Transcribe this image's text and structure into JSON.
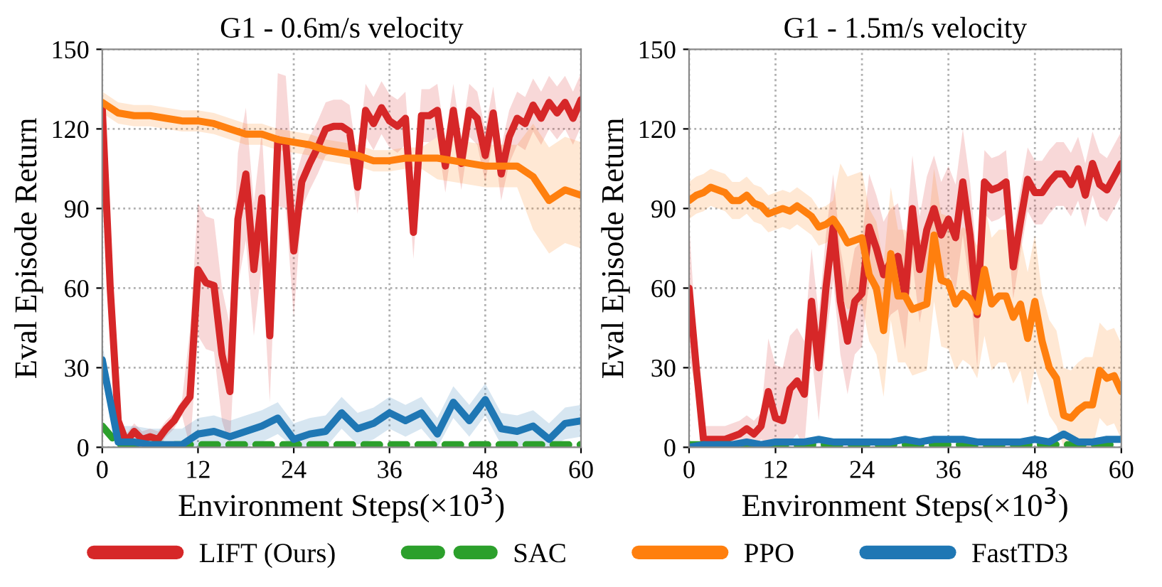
{
  "chart_data": [
    {
      "type": "line",
      "title": "G1 - 0.6m/s velocity",
      "xlabel": "Environment Steps(×10$^{3}$)",
      "ylabel": "Eval Episode Return",
      "xlim": [
        0,
        60
      ],
      "xticks": [
        0,
        12,
        24,
        36,
        48,
        60
      ],
      "ylim": [
        0,
        150
      ],
      "yticks": [
        0,
        30,
        60,
        90,
        120,
        150
      ],
      "grid": true,
      "legend": "bottom",
      "line_style": "solid",
      "series": [
        {
          "name": "LIFT (Ours)",
          "color": "#d62728",
          "x": [
            0,
            1,
            2,
            3,
            4,
            5,
            6,
            7,
            8,
            9,
            10,
            11,
            12,
            13,
            14,
            15,
            16,
            17,
            18,
            19,
            20,
            21,
            22,
            23,
            24,
            25,
            26,
            27,
            28,
            29,
            30,
            31,
            32,
            33,
            34,
            35,
            36,
            37,
            38,
            39,
            40,
            41,
            42,
            43,
            44,
            45,
            46,
            47,
            48,
            49,
            50,
            51,
            52,
            53,
            54,
            55,
            56,
            57,
            58,
            59,
            60
          ],
          "values": [
            128,
            60,
            10,
            2,
            6,
            3,
            4,
            3,
            7,
            10,
            15,
            19,
            67,
            62,
            61,
            35,
            21,
            86,
            103,
            67,
            94,
            42,
            116,
            115,
            74,
            100,
            107,
            113,
            120,
            121,
            121,
            119,
            98,
            127,
            122,
            128,
            123,
            121,
            124,
            81,
            125,
            125,
            127,
            106,
            127,
            107,
            127,
            124,
            110,
            126,
            103,
            117,
            124,
            122,
            129,
            124,
            130,
            126,
            130,
            124,
            131
          ],
          "lower": [
            125,
            57,
            7,
            0,
            3,
            0,
            1,
            0,
            4,
            7,
            12,
            0,
            42,
            37,
            36,
            10,
            0,
            61,
            78,
            42,
            69,
            17,
            91,
            90,
            49,
            90,
            97,
            103,
            110,
            111,
            111,
            109,
            88,
            117,
            112,
            118,
            113,
            111,
            114,
            71,
            115,
            115,
            117,
            96,
            117,
            97,
            117,
            114,
            100,
            116,
            93,
            107,
            114,
            112,
            119,
            114,
            120,
            116,
            120,
            114,
            121
          ],
          "upper": [
            131,
            63,
            13,
            5,
            9,
            6,
            7,
            6,
            10,
            13,
            18,
            44,
            92,
            87,
            86,
            60,
            46,
            111,
            128,
            92,
            119,
            67,
            141,
            140,
            99,
            110,
            117,
            123,
            130,
            131,
            131,
            129,
            108,
            137,
            132,
            138,
            133,
            131,
            134,
            91,
            135,
            135,
            137,
            116,
            137,
            117,
            137,
            134,
            120,
            136,
            113,
            127,
            134,
            132,
            139,
            134,
            140,
            136,
            140,
            134,
            141
          ]
        },
        {
          "name": "SAC",
          "color": "#2ca02c",
          "line_style": "dashed",
          "x": [
            0,
            2,
            4,
            6,
            8,
            10,
            12,
            14,
            16,
            18,
            20,
            22,
            24,
            26,
            28,
            30,
            32,
            34,
            36,
            38,
            40,
            42,
            44,
            46,
            48,
            50,
            52,
            54,
            56,
            58,
            60
          ],
          "values": [
            8,
            1,
            1,
            1,
            1,
            1,
            1,
            1,
            1,
            1,
            1,
            1,
            1,
            1,
            1,
            1,
            1,
            1,
            1,
            1,
            1,
            1,
            1,
            1,
            1,
            1,
            1,
            1,
            1,
            1,
            1
          ]
        },
        {
          "name": "PPO",
          "color": "#ff7f0e",
          "x": [
            0,
            2,
            4,
            6,
            8,
            10,
            12,
            14,
            16,
            18,
            20,
            22,
            24,
            26,
            28,
            30,
            32,
            34,
            36,
            38,
            40,
            42,
            44,
            46,
            48,
            50,
            52,
            54,
            56,
            58,
            60
          ],
          "values": [
            130,
            126,
            125,
            125,
            124,
            123,
            123,
            122,
            120,
            118,
            118,
            116,
            115,
            114,
            112,
            111,
            110,
            108,
            108,
            109,
            109,
            109,
            108,
            107,
            106,
            106,
            106,
            102,
            93,
            97,
            95
          ],
          "lower": [
            126,
            122,
            121,
            121,
            120,
            119,
            119,
            118,
            116,
            114,
            114,
            112,
            111,
            110,
            108,
            107,
            106,
            104,
            104,
            105,
            105,
            101,
            100,
            99,
            98,
            98,
            98,
            82,
            73,
            77,
            75
          ],
          "upper": [
            134,
            130,
            129,
            129,
            128,
            127,
            127,
            126,
            124,
            122,
            122,
            120,
            119,
            118,
            116,
            115,
            114,
            112,
            112,
            113,
            113,
            117,
            116,
            115,
            114,
            114,
            114,
            122,
            113,
            117,
            115
          ]
        },
        {
          "name": "FastTD3",
          "color": "#1f77b4",
          "x": [
            0,
            2,
            4,
            6,
            8,
            10,
            12,
            14,
            16,
            18,
            20,
            22,
            24,
            26,
            28,
            30,
            32,
            34,
            36,
            38,
            40,
            42,
            44,
            46,
            48,
            50,
            52,
            54,
            56,
            58,
            60
          ],
          "values": [
            33,
            2,
            2,
            1,
            1,
            1,
            5,
            6,
            4,
            6,
            8,
            11,
            3,
            5,
            6,
            13,
            7,
            9,
            13,
            10,
            13,
            5,
            17,
            10,
            18,
            7,
            6,
            8,
            3,
            9,
            10
          ],
          "lower": [
            27,
            0,
            0,
            0,
            0,
            0,
            0,
            0,
            0,
            0,
            2,
            5,
            0,
            0,
            0,
            7,
            1,
            3,
            7,
            4,
            7,
            0,
            11,
            4,
            12,
            1,
            0,
            2,
            0,
            3,
            4
          ],
          "upper": [
            39,
            8,
            8,
            7,
            7,
            7,
            11,
            12,
            10,
            12,
            14,
            17,
            9,
            11,
            12,
            19,
            13,
            15,
            19,
            16,
            19,
            11,
            23,
            16,
            24,
            13,
            12,
            14,
            9,
            15,
            16
          ]
        }
      ]
    },
    {
      "type": "line",
      "title": "G1 - 1.5m/s velocity",
      "xlabel": "Environment Steps(×10$^{3}$)",
      "ylabel": "Eval Episode Return",
      "xlim": [
        0,
        60
      ],
      "xticks": [
        0,
        12,
        24,
        36,
        48,
        60
      ],
      "ylim": [
        0,
        150
      ],
      "yticks": [
        0,
        30,
        60,
        90,
        120,
        150
      ],
      "grid": true,
      "legend": "bottom",
      "line_style": "solid",
      "series": [
        {
          "name": "LIFT (Ours)",
          "color": "#d62728",
          "x": [
            0,
            1,
            2,
            3,
            4,
            5,
            6,
            7,
            8,
            9,
            10,
            11,
            12,
            13,
            14,
            15,
            16,
            17,
            18,
            19,
            20,
            21,
            22,
            23,
            24,
            25,
            26,
            27,
            28,
            29,
            30,
            31,
            32,
            33,
            34,
            35,
            36,
            37,
            38,
            39,
            40,
            41,
            42,
            43,
            44,
            45,
            46,
            47,
            48,
            49,
            50,
            51,
            52,
            53,
            54,
            55,
            56,
            57,
            58,
            59,
            60
          ],
          "values": [
            60,
            30,
            3,
            3,
            3,
            3,
            4,
            5,
            7,
            5,
            8,
            21,
            11,
            10,
            22,
            25,
            20,
            55,
            30,
            60,
            83,
            55,
            40,
            55,
            58,
            83,
            75,
            65,
            70,
            72,
            57,
            90,
            67,
            82,
            90,
            80,
            86,
            79,
            100,
            80,
            50,
            100,
            97,
            98,
            100,
            68,
            85,
            101,
            96,
            96,
            100,
            103,
            103,
            99,
            105,
            95,
            107,
            99,
            97,
            102,
            107
          ],
          "lower": [
            35,
            20,
            0,
            0,
            0,
            0,
            0,
            0,
            2,
            0,
            3,
            1,
            0,
            0,
            2,
            5,
            0,
            35,
            10,
            40,
            63,
            35,
            20,
            35,
            38,
            63,
            55,
            45,
            50,
            52,
            37,
            70,
            47,
            62,
            70,
            60,
            66,
            59,
            80,
            60,
            30,
            88,
            85,
            86,
            88,
            56,
            73,
            89,
            84,
            84,
            88,
            91,
            91,
            87,
            93,
            83,
            95,
            87,
            85,
            90,
            95
          ],
          "upper": [
            85,
            40,
            8,
            8,
            8,
            8,
            9,
            10,
            12,
            10,
            13,
            41,
            31,
            30,
            42,
            45,
            40,
            75,
            50,
            80,
            103,
            75,
            60,
            75,
            78,
            103,
            95,
            85,
            90,
            92,
            77,
            110,
            87,
            102,
            110,
            100,
            106,
            99,
            120,
            100,
            70,
            112,
            109,
            110,
            112,
            80,
            97,
            113,
            108,
            108,
            112,
            115,
            115,
            111,
            117,
            107,
            119,
            111,
            109,
            114,
            119
          ]
        },
        {
          "name": "SAC",
          "color": "#2ca02c",
          "line_style": "dashed",
          "x": [
            0,
            2,
            4,
            6,
            8,
            10,
            12,
            14,
            16,
            18,
            20,
            22,
            24,
            26,
            28,
            30,
            32,
            34,
            36,
            38,
            40,
            42,
            44,
            46,
            48,
            50,
            52,
            54,
            56,
            58,
            60
          ],
          "values": [
            1,
            1,
            1,
            1,
            1,
            1,
            1,
            1,
            1,
            1,
            1,
            1,
            1,
            1,
            1,
            1,
            1,
            1,
            1,
            1,
            1,
            1,
            1,
            1,
            1,
            1,
            1,
            1,
            1,
            1,
            1
          ]
        },
        {
          "name": "PPO",
          "color": "#ff7f0e",
          "x": [
            0,
            1,
            2,
            3,
            4,
            5,
            6,
            7,
            8,
            9,
            10,
            11,
            12,
            13,
            14,
            15,
            16,
            17,
            18,
            19,
            20,
            21,
            22,
            23,
            24,
            25,
            26,
            27,
            28,
            29,
            30,
            31,
            32,
            33,
            34,
            35,
            36,
            37,
            38,
            39,
            40,
            41,
            42,
            43,
            44,
            45,
            46,
            47,
            48,
            49,
            50,
            51,
            52,
            53,
            54,
            55,
            56,
            57,
            58,
            59,
            60
          ],
          "values": [
            93,
            95,
            96,
            98,
            97,
            96,
            93,
            93,
            95,
            92,
            91,
            88,
            89,
            90,
            89,
            91,
            89,
            87,
            83,
            84,
            86,
            82,
            77,
            78,
            79,
            65,
            60,
            44,
            73,
            57,
            57,
            52,
            53,
            54,
            80,
            63,
            62,
            54,
            58,
            56,
            51,
            67,
            54,
            57,
            57,
            49,
            54,
            41,
            55,
            40,
            30,
            26,
            12,
            11,
            14,
            16,
            16,
            29,
            26,
            27,
            21
          ],
          "lower": [
            86,
            88,
            89,
            91,
            90,
            89,
            86,
            86,
            88,
            85,
            84,
            81,
            82,
            83,
            82,
            84,
            82,
            80,
            76,
            77,
            79,
            57,
            52,
            53,
            54,
            40,
            35,
            19,
            48,
            32,
            32,
            27,
            28,
            29,
            55,
            38,
            37,
            29,
            33,
            31,
            26,
            42,
            29,
            32,
            32,
            24,
            29,
            16,
            30,
            22,
            12,
            8,
            0,
            0,
            0,
            0,
            0,
            11,
            8,
            9,
            3
          ],
          "upper": [
            100,
            102,
            103,
            105,
            104,
            103,
            100,
            100,
            102,
            99,
            98,
            95,
            96,
            97,
            96,
            98,
            96,
            94,
            90,
            91,
            93,
            107,
            102,
            103,
            104,
            90,
            85,
            69,
            98,
            82,
            82,
            77,
            78,
            79,
            105,
            88,
            87,
            79,
            83,
            81,
            76,
            92,
            79,
            82,
            82,
            74,
            79,
            66,
            80,
            58,
            48,
            44,
            30,
            29,
            32,
            34,
            34,
            47,
            44,
            45,
            39
          ]
        },
        {
          "name": "FastTD3",
          "color": "#1f77b4",
          "x": [
            0,
            2,
            4,
            6,
            8,
            10,
            12,
            14,
            16,
            18,
            20,
            22,
            24,
            26,
            28,
            30,
            32,
            34,
            36,
            38,
            40,
            42,
            44,
            46,
            48,
            50,
            52,
            54,
            56,
            58,
            60
          ],
          "values": [
            0,
            1,
            1,
            1,
            2,
            1,
            2,
            2,
            2,
            3,
            2,
            2,
            2,
            2,
            2,
            3,
            2,
            3,
            3,
            3,
            2,
            2,
            2,
            2,
            3,
            2,
            5,
            2,
            2,
            3,
            3
          ]
        }
      ]
    }
  ]
}
